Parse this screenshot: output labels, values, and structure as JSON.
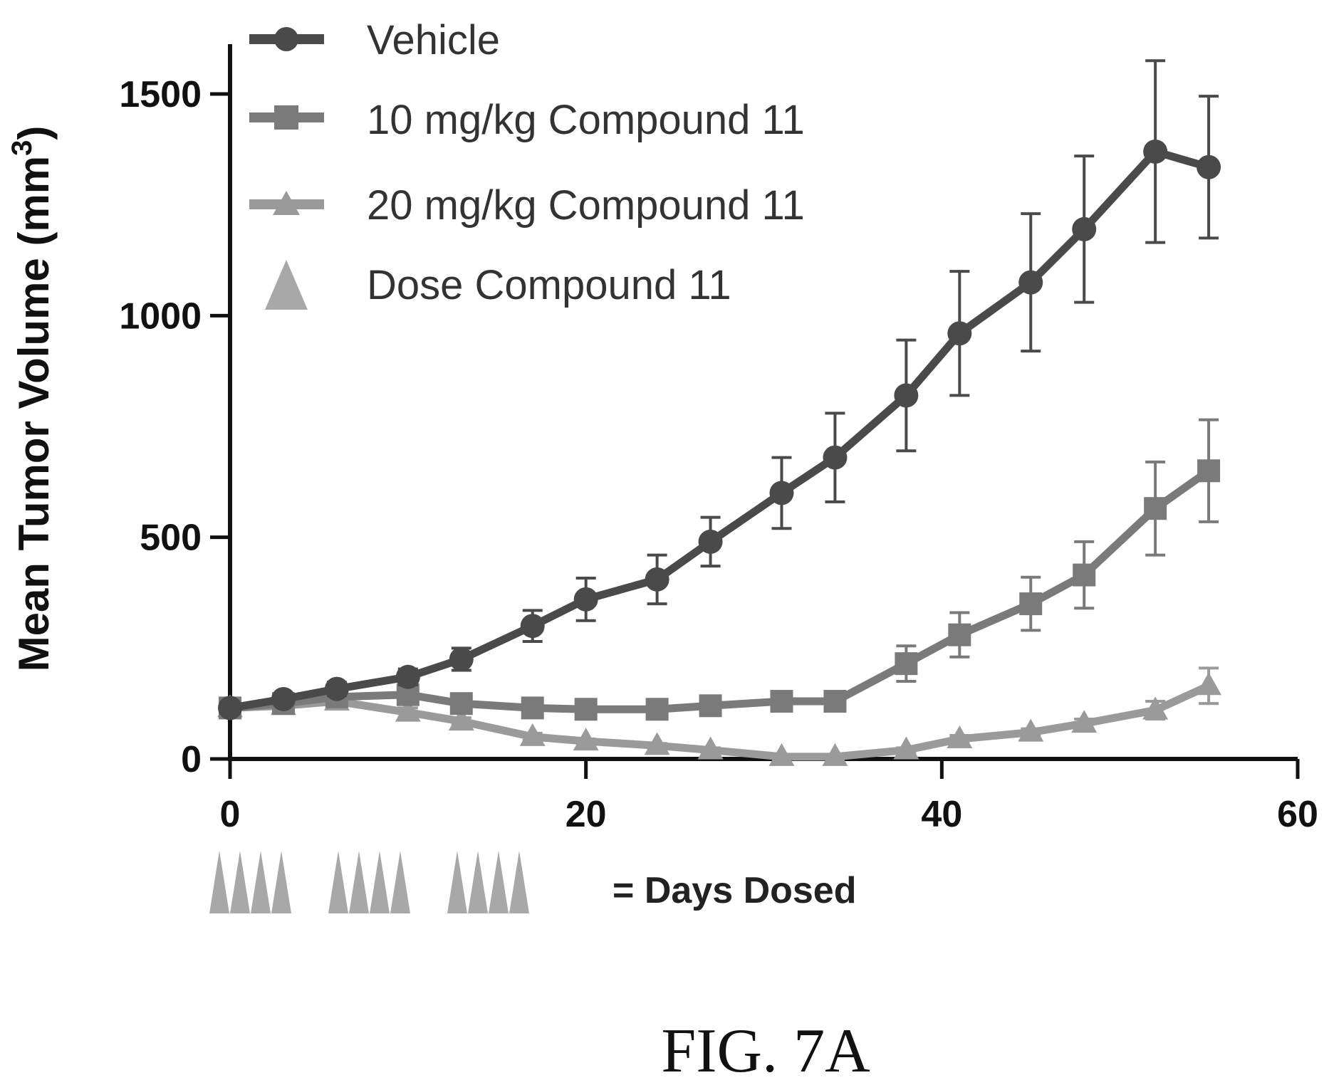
{
  "figure_label": "FIG. 7A",
  "chart_data": {
    "type": "line",
    "xlabel": "",
    "ylabel": "Mean Tumor Volume (mm",
    "ylabel_superscript": "3",
    "ylabel_close": ")",
    "xlim": [
      0,
      60
    ],
    "ylim": [
      0,
      1500
    ],
    "x_ticks": [
      0,
      20,
      40,
      60
    ],
    "y_ticks": [
      0,
      500,
      1000,
      1500
    ],
    "legend_position": "top-left",
    "series": [
      {
        "name": "Vehicle",
        "marker": "circle",
        "color": "#4a4a4a",
        "x": [
          0,
          3,
          6,
          10,
          13,
          17,
          20,
          24,
          27,
          31,
          34,
          38,
          41,
          45,
          48,
          52,
          55
        ],
        "y": [
          115,
          135,
          158,
          185,
          225,
          300,
          360,
          405,
          490,
          600,
          680,
          820,
          960,
          1075,
          1195,
          1370,
          1335
        ],
        "err": [
          10,
          12,
          15,
          18,
          25,
          35,
          48,
          55,
          55,
          80,
          100,
          125,
          140,
          155,
          165,
          205,
          160
        ]
      },
      {
        "name": "10 mg/kg Compound 11",
        "marker": "square",
        "color": "#7a7a7a",
        "x": [
          0,
          3,
          6,
          10,
          13,
          17,
          20,
          24,
          27,
          31,
          34,
          38,
          41,
          45,
          48,
          52,
          55
        ],
        "y": [
          115,
          125,
          140,
          145,
          125,
          115,
          112,
          112,
          120,
          130,
          130,
          215,
          280,
          350,
          415,
          565,
          650
        ],
        "err": [
          10,
          10,
          12,
          12,
          10,
          10,
          8,
          8,
          10,
          10,
          10,
          40,
          50,
          60,
          75,
          105,
          115
        ]
      },
      {
        "name": "20 mg/kg Compound 11",
        "marker": "triangle",
        "color": "#9a9a9a",
        "x": [
          0,
          3,
          6,
          10,
          13,
          17,
          20,
          24,
          27,
          31,
          34,
          38,
          41,
          45,
          48,
          52,
          55
        ],
        "y": [
          115,
          120,
          130,
          105,
          85,
          50,
          40,
          30,
          20,
          5,
          5,
          20,
          45,
          60,
          80,
          110,
          165
        ],
        "err": [
          10,
          10,
          10,
          10,
          8,
          8,
          5,
          5,
          5,
          3,
          3,
          5,
          8,
          8,
          10,
          20,
          40
        ]
      }
    ],
    "dose_legend_label": "Dose Compound 11",
    "days_dosed_label": "= Days Dosed",
    "dose_triangle_groups": 3,
    "dose_triangles_per_group": 4,
    "dose_color": "#a8a8a8"
  }
}
